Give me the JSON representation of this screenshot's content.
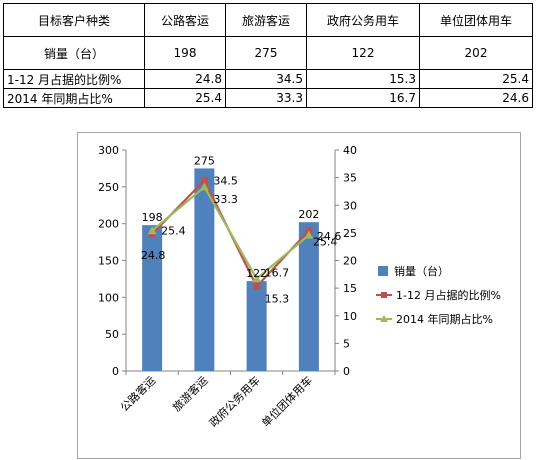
{
  "table": {
    "header": [
      "目标客户种类",
      "公路客运",
      "旅游客运",
      "政府公务用车",
      "单位团体用车"
    ],
    "rows": [
      {
        "label": "销量（台）",
        "values": [
          "198",
          "275",
          "122",
          "202"
        ]
      },
      {
        "label": "1-12 月占据的比例%",
        "values": [
          "24.8",
          "34.5",
          "15.3",
          "25.4"
        ]
      },
      {
        "label": "2014 年同期占比%",
        "values": [
          "25.4",
          "33.3",
          "16.7",
          "24.6"
        ]
      }
    ]
  },
  "chart_data": {
    "type": "bar",
    "categories": [
      "公路客运",
      "旅游客运",
      "政府公务用车",
      "单位团体用车"
    ],
    "series": [
      {
        "name": "销量（台）",
        "type": "bar",
        "axis": "left",
        "values": [
          198,
          275,
          122,
          202
        ],
        "color": "#4f81bd"
      },
      {
        "name": "1-12 月占据的比例%",
        "type": "line",
        "axis": "right",
        "values": [
          24.8,
          34.5,
          15.3,
          25.4
        ],
        "color": "#c0504d",
        "marker": "square"
      },
      {
        "name": "2014 年同期占比%",
        "type": "line",
        "axis": "right",
        "values": [
          25.4,
          33.3,
          16.7,
          24.6
        ],
        "color": "#9bbb59",
        "marker": "triangle"
      }
    ],
    "ylim_left": [
      0,
      300
    ],
    "yticks_left": [
      0,
      50,
      100,
      150,
      200,
      250,
      300
    ],
    "ylim_right": [
      0,
      40
    ],
    "yticks_right": [
      0,
      5,
      10,
      15,
      20,
      25,
      30,
      35,
      40
    ],
    "grid": false,
    "legend_position": "right"
  }
}
